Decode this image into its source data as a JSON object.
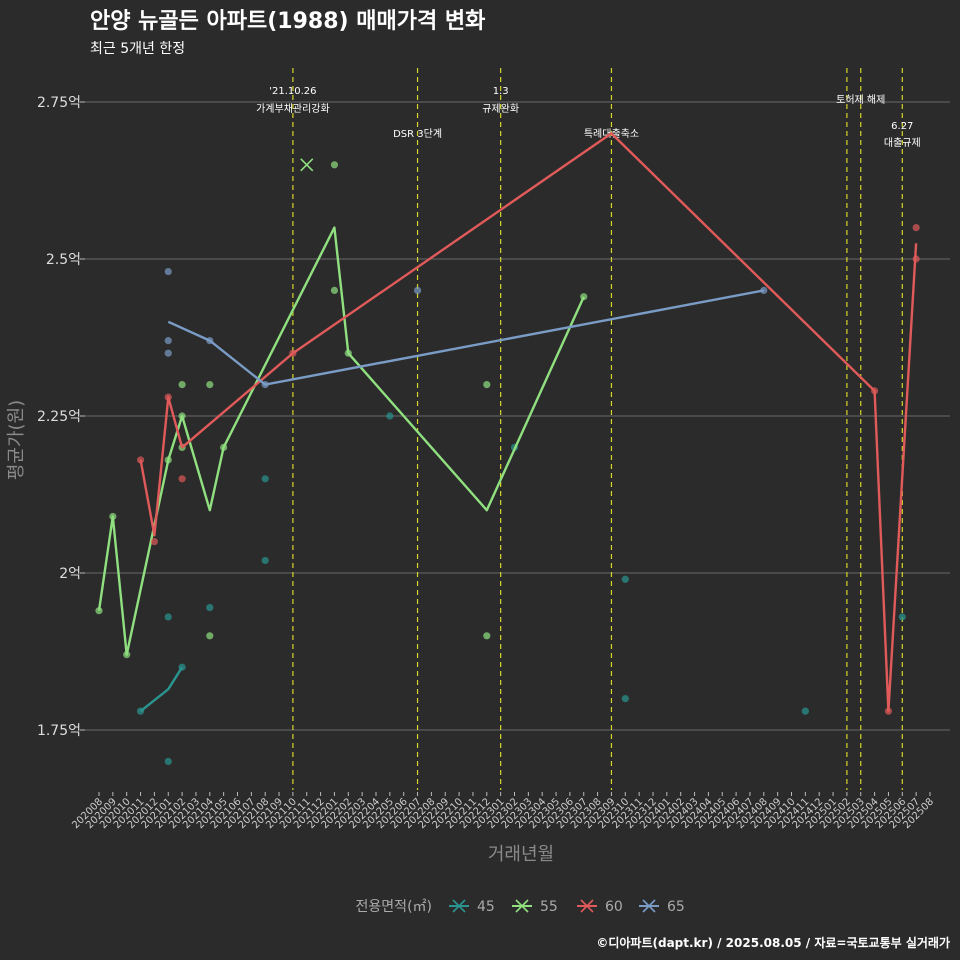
{
  "chart_data": {
    "type": "line",
    "title": "안양 뉴골든 아파트(1988) 매매가격 변화",
    "subtitle": "최근 5개년 한정",
    "xlabel": "거래년월",
    "ylabel": "평균가(원)",
    "caption": "©디아파트(dapt.kr) / 2025.08.05 / 자료=국토교통부 실거래가",
    "ylim": [
      1.66,
      2.79
    ],
    "yticks": [
      {
        "value": 1.75,
        "label": "1.75억"
      },
      {
        "value": 2.0,
        "label": "2억"
      },
      {
        "value": 2.25,
        "label": "2.25억"
      },
      {
        "value": 2.5,
        "label": "2.5억"
      },
      {
        "value": 2.75,
        "label": "2.75억"
      }
    ],
    "categories": [
      "202008",
      "202009",
      "202010",
      "202011",
      "202012",
      "202101",
      "202102",
      "202103",
      "202104",
      "202105",
      "202106",
      "202107",
      "202108",
      "202109",
      "202110",
      "202111",
      "202112",
      "202201",
      "202202",
      "202203",
      "202204",
      "202205",
      "202206",
      "202207",
      "202208",
      "202209",
      "202210",
      "202211",
      "202212",
      "202301",
      "202302",
      "202303",
      "202304",
      "202305",
      "202306",
      "202307",
      "202308",
      "202309",
      "202310",
      "202311",
      "202312",
      "202401",
      "202402",
      "202403",
      "202404",
      "202405",
      "202406",
      "202407",
      "202408",
      "202409",
      "202410",
      "202411",
      "202412",
      "202501",
      "202502",
      "202503",
      "202504",
      "202505",
      "202506",
      "202507",
      "202508"
    ],
    "legend_title": "전용면적(㎡)",
    "series": [
      {
        "name": "45",
        "color": "#2a9590",
        "line": [
          {
            "x": "202011",
            "y": 1.78
          },
          {
            "x": "202101",
            "y": 1.815
          },
          {
            "x": "202102",
            "y": 1.85
          }
        ],
        "points": [
          {
            "x": "202011",
            "y": 1.78
          },
          {
            "x": "202101",
            "y": 1.93
          },
          {
            "x": "202101",
            "y": 1.7
          },
          {
            "x": "202102",
            "y": 1.85
          },
          {
            "x": "202104",
            "y": 1.945
          },
          {
            "x": "202108",
            "y": 2.02
          },
          {
            "x": "202108",
            "y": 2.15
          },
          {
            "x": "202205",
            "y": 2.25
          },
          {
            "x": "202302",
            "y": 2.2
          },
          {
            "x": "202310",
            "y": 1.99
          },
          {
            "x": "202310",
            "y": 1.8
          },
          {
            "x": "202411",
            "y": 1.78
          },
          {
            "x": "202506",
            "y": 1.93
          }
        ]
      },
      {
        "name": "55",
        "color": "#90e080",
        "line": [
          {
            "x": "202008",
            "y": 1.94
          },
          {
            "x": "202009",
            "y": 2.09
          },
          {
            "x": "202010",
            "y": 1.87
          },
          {
            "x": "202101",
            "y": 2.18
          },
          {
            "x": "202102",
            "y": 2.25
          },
          {
            "x": "202104",
            "y": 2.1
          },
          {
            "x": "202105",
            "y": 2.2
          },
          {
            "x": "202201",
            "y": 2.55
          },
          {
            "x": "202202",
            "y": 2.35
          },
          {
            "x": "202212",
            "y": 2.1
          },
          {
            "x": "202307",
            "y": 2.44
          }
        ],
        "points": [
          {
            "x": "202008",
            "y": 1.94
          },
          {
            "x": "202009",
            "y": 2.09
          },
          {
            "x": "202010",
            "y": 1.87
          },
          {
            "x": "202101",
            "y": 2.18
          },
          {
            "x": "202102",
            "y": 2.25
          },
          {
            "x": "202102",
            "y": 2.3
          },
          {
            "x": "202102",
            "y": 2.2
          },
          {
            "x": "202104",
            "y": 2.3
          },
          {
            "x": "202104",
            "y": 1.9
          },
          {
            "x": "202105",
            "y": 2.2
          },
          {
            "x": "202201",
            "y": 2.65
          },
          {
            "x": "202201",
            "y": 2.45
          },
          {
            "x": "202202",
            "y": 2.35
          },
          {
            "x": "202212",
            "y": 2.3
          },
          {
            "x": "202212",
            "y": 1.9
          },
          {
            "x": "202307",
            "y": 2.44
          }
        ],
        "cross": [
          {
            "x": "202111",
            "y": 2.65
          }
        ]
      },
      {
        "name": "60",
        "color": "#e05a5a",
        "line": [
          {
            "x": "202011",
            "y": 2.18
          },
          {
            "x": "202012",
            "y": 2.06
          },
          {
            "x": "202101",
            "y": 2.28
          },
          {
            "x": "202102",
            "y": 2.2
          },
          {
            "x": "202110",
            "y": 2.35
          },
          {
            "x": "202309",
            "y": 2.7
          },
          {
            "x": "202504",
            "y": 2.29
          },
          {
            "x": "202505",
            "y": 1.78
          },
          {
            "x": "202507",
            "y": 2.525
          }
        ],
        "points": [
          {
            "x": "202011",
            "y": 2.18
          },
          {
            "x": "202012",
            "y": 2.05
          },
          {
            "x": "202101",
            "y": 2.28
          },
          {
            "x": "202102",
            "y": 2.15
          },
          {
            "x": "202110",
            "y": 2.35
          },
          {
            "x": "202504",
            "y": 2.29
          },
          {
            "x": "202505",
            "y": 1.78
          },
          {
            "x": "202507",
            "y": 2.55
          },
          {
            "x": "202507",
            "y": 2.5
          }
        ]
      },
      {
        "name": "65",
        "color": "#7a9cc6",
        "line": [
          {
            "x": "202101",
            "y": 2.4
          },
          {
            "x": "202104",
            "y": 2.37
          },
          {
            "x": "202108",
            "y": 2.3
          },
          {
            "x": "202408",
            "y": 2.45
          }
        ],
        "points": [
          {
            "x": "202101",
            "y": 2.48
          },
          {
            "x": "202101",
            "y": 2.37
          },
          {
            "x": "202101",
            "y": 2.35
          },
          {
            "x": "202104",
            "y": 2.37
          },
          {
            "x": "202108",
            "y": 2.3
          },
          {
            "x": "202207",
            "y": 2.45
          },
          {
            "x": "202408",
            "y": 2.45
          }
        ]
      }
    ],
    "events": [
      {
        "x": "202110",
        "lines": [
          "'21.10.26",
          "가계부채관리강화"
        ],
        "level": "top"
      },
      {
        "x": "202207",
        "lines": [
          "DSR 3단계"
        ],
        "level": "mid"
      },
      {
        "x": "202301",
        "lines": [
          "1.3",
          "규제완화"
        ],
        "level": "top"
      },
      {
        "x": "202309",
        "lines": [
          "특례대출축소"
        ],
        "level": "mid"
      },
      {
        "x": "202502",
        "lines": [],
        "level": "none"
      },
      {
        "x": "202503",
        "lines": [
          "토허제 해제"
        ],
        "level": "single"
      },
      {
        "x": "202506",
        "lines": [
          "6.27",
          "대출규제"
        ],
        "level": "low"
      }
    ],
    "legend_position": "bottom"
  }
}
